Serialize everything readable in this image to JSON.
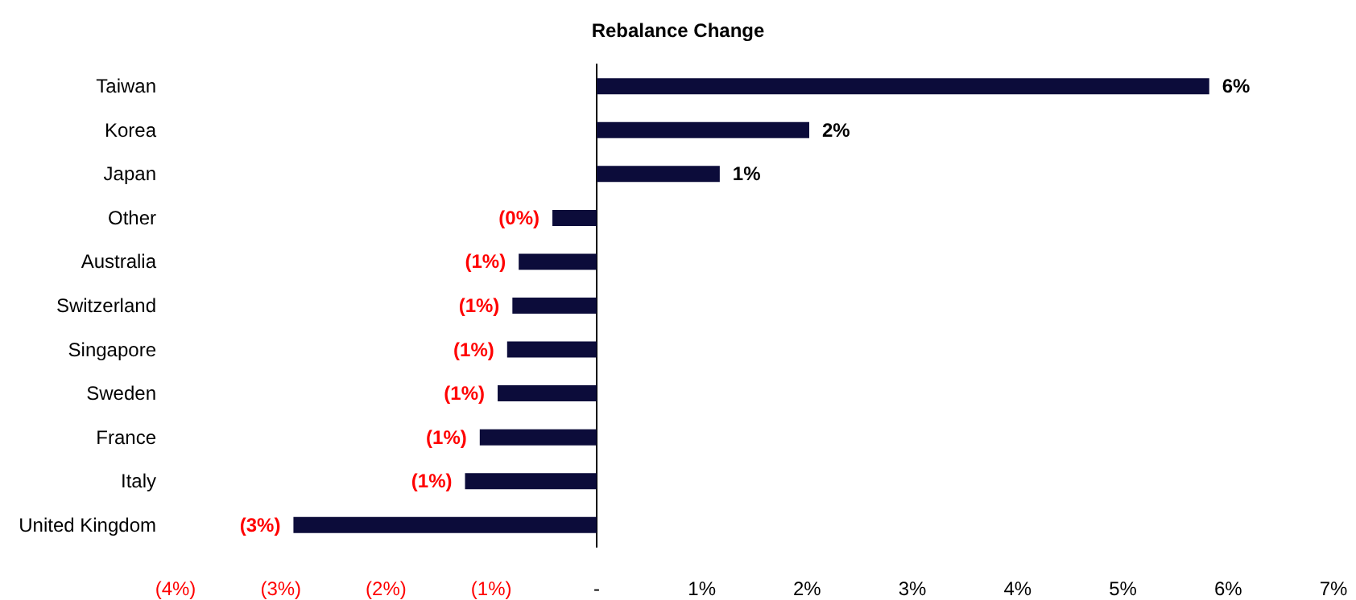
{
  "chart_data": {
    "type": "bar",
    "orientation": "horizontal",
    "title": "Rebalance Change",
    "categories": [
      "Taiwan",
      "Korea",
      "Japan",
      "Other",
      "Australia",
      "Switzerland",
      "Singapore",
      "Sweden",
      "France",
      "Italy",
      "United Kingdom"
    ],
    "values": [
      5.82,
      2.02,
      1.17,
      -0.42,
      -0.74,
      -0.8,
      -0.85,
      -0.94,
      -1.11,
      -1.25,
      -2.88
    ],
    "value_labels": [
      "6%",
      "2%",
      "1%",
      "(0%)",
      "(1%)",
      "(1%)",
      "(1%)",
      "(1%)",
      "(1%)",
      "(1%)",
      "(3%)"
    ],
    "color": "#0c0c3a",
    "xlim": [
      -4,
      7
    ],
    "xticks": [
      {
        "value": -4,
        "label": "(4%)"
      },
      {
        "value": -3,
        "label": "(3%)"
      },
      {
        "value": -2,
        "label": "(2%)"
      },
      {
        "value": -1,
        "label": "(1%)"
      },
      {
        "value": 0,
        "label": "-"
      },
      {
        "value": 1,
        "label": "1%"
      },
      {
        "value": 2,
        "label": "2%"
      },
      {
        "value": 3,
        "label": "3%"
      },
      {
        "value": 4,
        "label": "4%"
      },
      {
        "value": 5,
        "label": "5%"
      },
      {
        "value": 6,
        "label": "6%"
      },
      {
        "value": 7,
        "label": "7%"
      }
    ]
  }
}
